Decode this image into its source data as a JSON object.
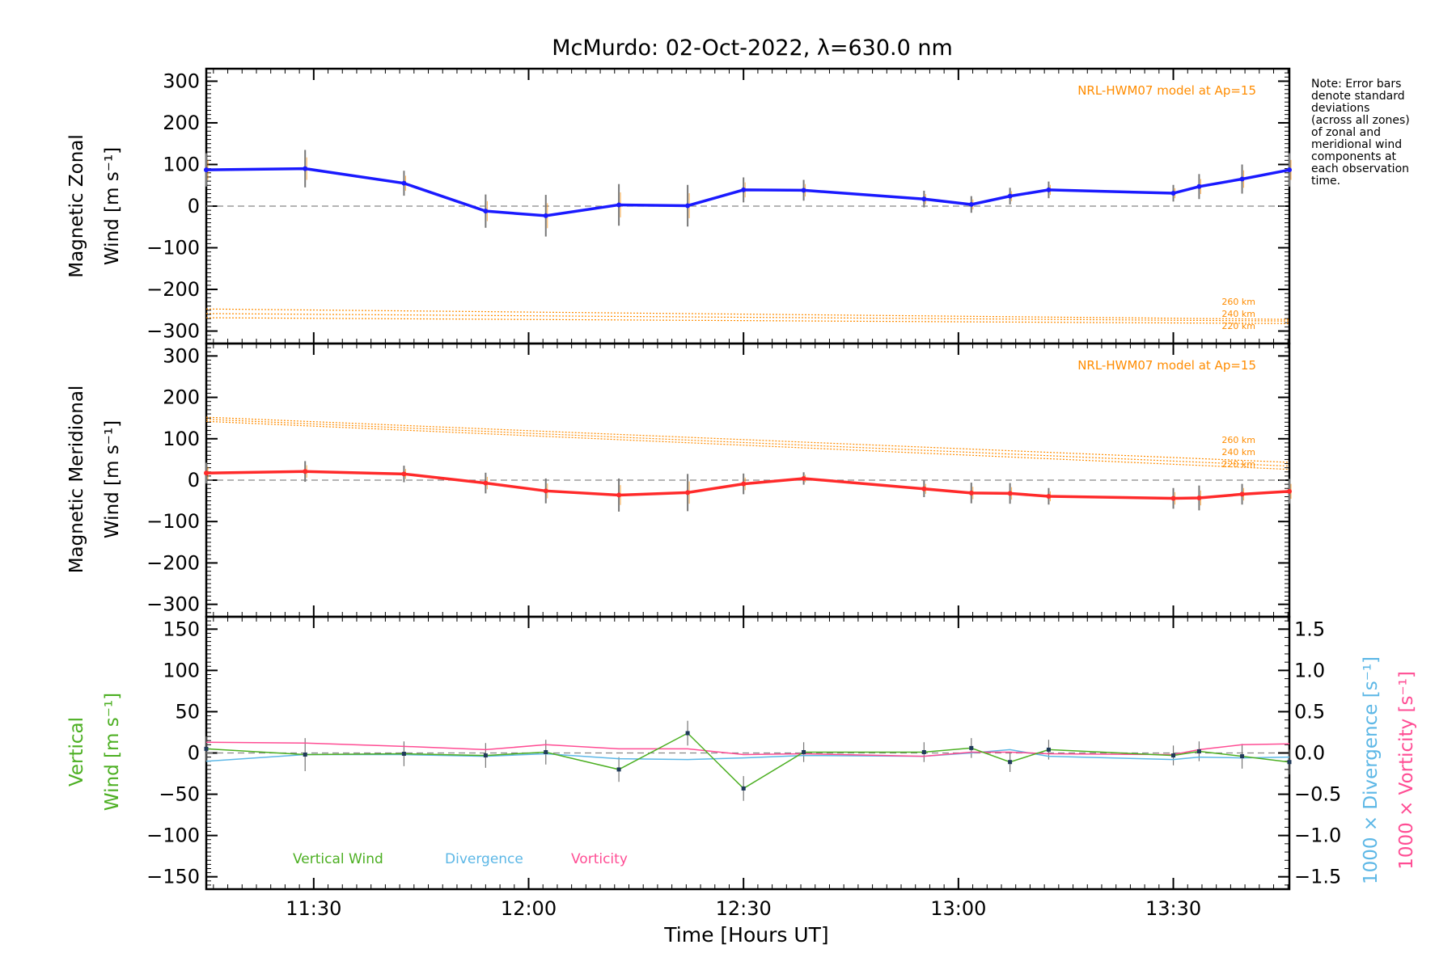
{
  "title": "McMurdo: 02-Oct-2022, λ=630.0 nm",
  "note_lines": [
    "Note: Error bars",
    "denote standard",
    "deviations",
    "(across all zones)",
    "of zonal and",
    "meridional wind",
    "components at",
    "each observation",
    "time."
  ],
  "xaxis": {
    "label": "Time [Hours UT]",
    "range": [
      11.25,
      13.77
    ],
    "ticks": [
      {
        "v": 11.5,
        "label": "11:30"
      },
      {
        "v": 12.0,
        "label": "12:00"
      },
      {
        "v": 12.5,
        "label": "12:30"
      },
      {
        "v": 13.0,
        "label": "13:00"
      },
      {
        "v": 13.5,
        "label": "13:30"
      }
    ]
  },
  "colors": {
    "zonal": "#1a1aff",
    "meridional": "#ff2a2a",
    "model": "#ff8c00",
    "vertical": "#4caf22",
    "divergence": "#5cb7e6",
    "vorticity": "#ff4d94",
    "errbar": "#777777",
    "axis": "#000000",
    "zero": "#888888"
  },
  "chart_data": [
    {
      "type": "line",
      "panel": "zonal",
      "ylabel_lines": [
        "Magnetic Zonal",
        "Wind [m s⁻¹]"
      ],
      "ylim": [
        -330,
        330
      ],
      "yticks": [
        -300,
        -200,
        -100,
        0,
        100,
        200,
        300
      ],
      "model_label": "NRL-HWM07 model at Ap=15",
      "model_lines": [
        {
          "name": "260 km",
          "x": [
            11.25,
            13.77
          ],
          "y": [
            -247,
            -272
          ]
        },
        {
          "name": "240 km",
          "x": [
            11.25,
            13.77
          ],
          "y": [
            -258,
            -276
          ]
        },
        {
          "name": "220 km",
          "x": [
            11.25,
            13.77
          ],
          "y": [
            -268,
            -282
          ]
        }
      ],
      "series": {
        "name": "Zonal wind",
        "x": [
          11.25,
          11.48,
          11.71,
          11.9,
          12.04,
          12.21,
          12.37,
          12.5,
          12.64,
          12.92,
          13.03,
          13.12,
          13.21,
          13.5,
          13.56,
          13.66,
          13.77
        ],
        "y": [
          87,
          90,
          55,
          -12,
          -23,
          3,
          1,
          39,
          38,
          17,
          4,
          24,
          39,
          31,
          47,
          65,
          87
        ],
        "err": [
          40,
          45,
          30,
          40,
          50,
          50,
          50,
          30,
          25,
          20,
          20,
          20,
          20,
          20,
          30,
          35,
          40
        ]
      }
    },
    {
      "type": "line",
      "panel": "meridional",
      "ylabel_lines": [
        "Magnetic Meridional",
        "Wind [m s⁻¹]"
      ],
      "ylim": [
        -330,
        330
      ],
      "yticks": [
        -300,
        -200,
        -100,
        0,
        100,
        200,
        300
      ],
      "model_label": "NRL-HWM07 model at Ap=15",
      "model_lines": [
        {
          "name": "260 km",
          "x": [
            11.25,
            13.77
          ],
          "y": [
            152,
            43
          ]
        },
        {
          "name": "240 km",
          "x": [
            11.25,
            13.77
          ],
          "y": [
            147,
            34
          ]
        },
        {
          "name": "220 km",
          "x": [
            11.25,
            13.77
          ],
          "y": [
            142,
            26
          ]
        }
      ],
      "series": {
        "name": "Meridional wind",
        "x": [
          11.25,
          11.48,
          11.71,
          11.9,
          12.04,
          12.21,
          12.37,
          12.5,
          12.64,
          12.92,
          13.03,
          13.12,
          13.21,
          13.5,
          13.56,
          13.66,
          13.77
        ],
        "y": [
          17,
          21,
          15,
          -7,
          -26,
          -36,
          -30,
          -9,
          4,
          -21,
          -31,
          -32,
          -39,
          -44,
          -43,
          -34,
          -27
        ],
        "err": [
          25,
          25,
          20,
          25,
          30,
          40,
          45,
          25,
          15,
          20,
          25,
          25,
          20,
          25,
          30,
          25,
          30
        ]
      }
    },
    {
      "type": "line",
      "panel": "vertical",
      "ylabel_lines": [
        "Vertical",
        "Wind [m s⁻¹]"
      ],
      "ylim": [
        -165,
        165
      ],
      "yticks": [
        -150,
        -100,
        -50,
        0,
        50,
        100,
        150
      ],
      "y2label_lines": [
        "1000 × Divergence [s⁻¹]",
        "1000 × Vorticity [s⁻¹]"
      ],
      "y2lim": [
        -1.65,
        1.65
      ],
      "y2ticks": [
        {
          "v": 1.5,
          "label": "1.5"
        },
        {
          "v": 1.0,
          "label": "1.0"
        },
        {
          "v": 0.5,
          "label": "0.5"
        },
        {
          "v": 0.0,
          "label": "0.0"
        },
        {
          "v": -0.5,
          "label": "−0.5"
        },
        {
          "v": -1.0,
          "label": "−1.0"
        },
        {
          "v": -1.5,
          "label": "−1.5"
        }
      ],
      "legend": [
        "Vertical Wind",
        "Divergence",
        "Vorticity"
      ],
      "series": [
        {
          "name": "Vertical Wind",
          "x": [
            11.25,
            11.48,
            11.71,
            11.9,
            12.04,
            12.21,
            12.37,
            12.5,
            12.64,
            12.92,
            13.03,
            13.12,
            13.21,
            13.5,
            13.56,
            13.66,
            13.77
          ],
          "y": [
            5,
            -2,
            -1,
            -3,
            1,
            -20,
            24,
            -43,
            1,
            1,
            6,
            -11,
            4,
            -3,
            2,
            -4,
            -11
          ],
          "err": [
            15,
            20,
            15,
            15,
            15,
            15,
            15,
            15,
            12,
            12,
            12,
            12,
            12,
            12,
            12,
            15,
            15
          ]
        },
        {
          "name": "Divergence",
          "axis": "right",
          "x": [
            11.25,
            11.48,
            11.71,
            11.9,
            12.04,
            12.21,
            12.37,
            12.5,
            12.64,
            12.92,
            13.03,
            13.12,
            13.21,
            13.5,
            13.56,
            13.66,
            13.77
          ],
          "y": [
            -0.1,
            -0.02,
            -0.02,
            -0.04,
            -0.01,
            -0.07,
            -0.08,
            -0.06,
            -0.03,
            -0.04,
            0.0,
            0.04,
            -0.04,
            -0.08,
            -0.05,
            -0.06,
            -0.05
          ]
        },
        {
          "name": "Vorticity",
          "axis": "right",
          "x": [
            11.25,
            11.48,
            11.71,
            11.9,
            12.04,
            12.21,
            12.37,
            12.5,
            12.64,
            12.92,
            13.03,
            13.12,
            13.21,
            13.5,
            13.56,
            13.66,
            13.77
          ],
          "y": [
            0.13,
            0.12,
            0.08,
            0.04,
            0.1,
            0.05,
            0.05,
            -0.02,
            -0.01,
            -0.04,
            0.01,
            0.01,
            -0.01,
            -0.02,
            0.04,
            0.1,
            0.11
          ]
        }
      ]
    }
  ]
}
